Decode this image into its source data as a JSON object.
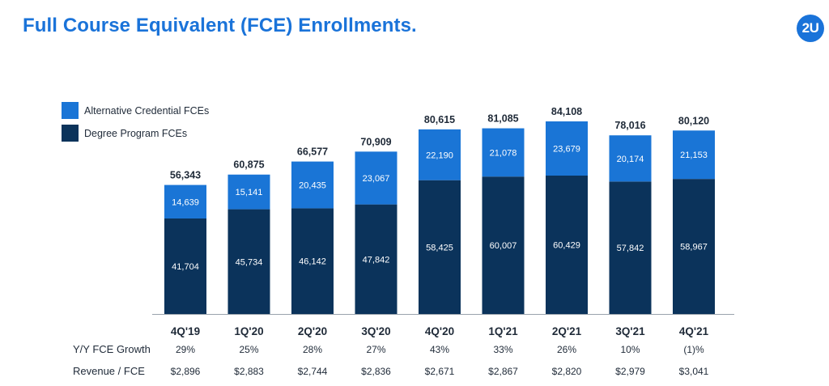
{
  "header": {
    "title": "Full Course Equivalent (FCE) Enrollments.",
    "logo_text": "2U"
  },
  "colors": {
    "accent": "#1a73d9",
    "alternative": "#1a75d6",
    "degree": "#0b335b",
    "axis": "#1f2a38"
  },
  "chart_data": {
    "type": "bar",
    "stacked": true,
    "categories": [
      "4Q'19",
      "1Q'20",
      "2Q'20",
      "3Q'20",
      "4Q'20",
      "1Q'21",
      "2Q'21",
      "3Q'21",
      "4Q'21"
    ],
    "series": [
      {
        "name": "Degree Program FCEs",
        "values": [
          41704,
          45734,
          46142,
          47842,
          58425,
          60007,
          60429,
          57842,
          58967
        ],
        "labels": [
          "41,704",
          "45,734",
          "46,142",
          "47,842",
          "58,425",
          "60,007",
          "60,429",
          "57,842",
          "58,967"
        ],
        "color": "#0b335b"
      },
      {
        "name": "Alternative Credential FCEs",
        "values": [
          14639,
          15141,
          20435,
          23067,
          22190,
          21078,
          23679,
          20174,
          21153
        ],
        "labels": [
          "14,639",
          "15,141",
          "20,435",
          "23,067",
          "22,190",
          "21,078",
          "23,679",
          "20,174",
          "21,153"
        ],
        "color": "#1a75d6"
      }
    ],
    "totals": [
      "56,343",
      "60,875",
      "66,577",
      "70,909",
      "80,615",
      "81,085",
      "84,108",
      "78,016",
      "80,120"
    ],
    "legend": [
      "Alternative Credential FCEs",
      "Degree Program FCEs"
    ],
    "legend_position": "top-left",
    "ylim": [
      0,
      84108
    ],
    "grid": false
  },
  "table": {
    "rows": [
      {
        "label": "Y/Y FCE Growth",
        "values": [
          "29%",
          "25%",
          "28%",
          "27%",
          "43%",
          "33%",
          "26%",
          "10%",
          "(1)%"
        ]
      },
      {
        "label": "Revenue / FCE",
        "values": [
          "$2,896",
          "$2,883",
          "$2,744",
          "$2,836",
          "$2,671",
          "$2,867",
          "$2,820",
          "$2,979",
          "$3,041"
        ]
      }
    ]
  }
}
